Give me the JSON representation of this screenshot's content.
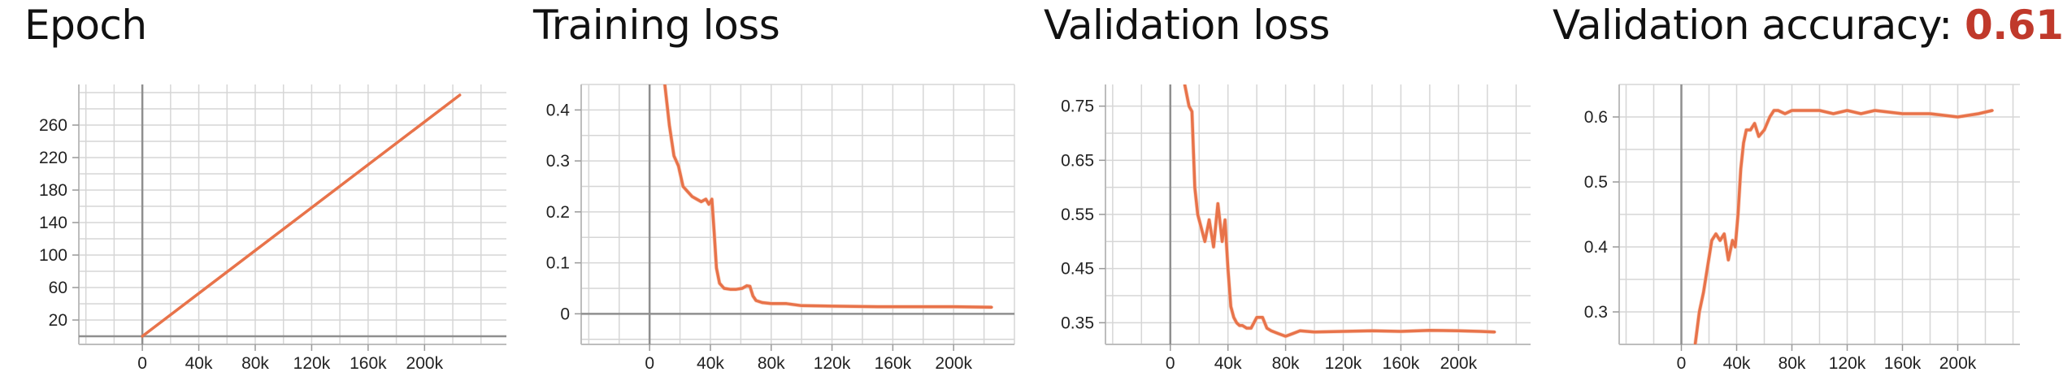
{
  "charts": [
    {
      "title": "Epoch",
      "chart_data": {
        "type": "line",
        "xlim": [
          -45000,
          258000
        ],
        "ylim": [
          -10,
          310
        ],
        "x_ticks": [
          0,
          40000,
          80000,
          120000,
          160000,
          200000
        ],
        "x_tick_labels": [
          "0",
          "40k",
          "80k",
          "120k",
          "160k",
          "200k"
        ],
        "y_ticks": [
          20,
          60,
          100,
          140,
          180,
          220,
          260
        ],
        "y_tick_labels": [
          "20",
          "60",
          "100",
          "140",
          "180",
          "220",
          "260"
        ],
        "grid": true,
        "series": [
          {
            "x": [
              0,
              225000
            ],
            "y": [
              0,
              297
            ],
            "smoothed": true
          }
        ]
      }
    },
    {
      "title": "Training loss",
      "chart_data": {
        "type": "line",
        "xlim": [
          -45000,
          240000
        ],
        "ylim": [
          -0.06,
          0.45
        ],
        "x_ticks": [
          0,
          40000,
          80000,
          120000,
          160000,
          200000
        ],
        "x_tick_labels": [
          "0",
          "40k",
          "80k",
          "120k",
          "160k",
          "200k"
        ],
        "y_ticks": [
          0,
          0.1,
          0.2,
          0.3,
          0.4
        ],
        "y_tick_labels": [
          "0",
          "0.1",
          "0.2",
          "0.3",
          "0.4"
        ],
        "grid": true,
        "series": [
          {
            "x": [
              10000,
              13000,
              16000,
              19000,
              22000,
              25000,
              28000,
              31000,
              34000,
              37000,
              39000,
              41000,
              42500,
              44000,
              46000,
              49000,
              53000,
              57000,
              61000,
              64000,
              66000,
              68000,
              70000,
              74000,
              80000,
              90000,
              100000,
              120000,
              150000,
              180000,
              200000,
              225000
            ],
            "y": [
              0.45,
              0.37,
              0.31,
              0.29,
              0.25,
              0.24,
              0.23,
              0.225,
              0.22,
              0.225,
              0.215,
              0.225,
              0.16,
              0.09,
              0.06,
              0.05,
              0.048,
              0.048,
              0.05,
              0.055,
              0.054,
              0.035,
              0.026,
              0.022,
              0.02,
              0.02,
              0.016,
              0.015,
              0.014,
              0.014,
              0.014,
              0.013
            ]
          }
        ]
      }
    },
    {
      "title": "Validation loss",
      "chart_data": {
        "type": "line",
        "xlim": [
          -45000,
          250000
        ],
        "ylim": [
          0.31,
          0.79
        ],
        "x_ticks": [
          0,
          40000,
          80000,
          120000,
          160000,
          200000
        ],
        "x_tick_labels": [
          "0",
          "40k",
          "80k",
          "120k",
          "160k",
          "200k"
        ],
        "y_ticks": [
          0.35,
          0.45,
          0.55,
          0.65,
          0.75
        ],
        "y_tick_labels": [
          "0.35",
          "0.45",
          "0.55",
          "0.65",
          "0.75"
        ],
        "grid": true,
        "series": [
          {
            "x": [
              10000,
              13000,
              15000,
              17000,
              19000,
              21000,
              24000,
              27000,
              30000,
              33000,
              36000,
              38000,
              40000,
              42000,
              44000,
              46000,
              48000,
              50000,
              53000,
              56000,
              60000,
              64000,
              67000,
              70000,
              75000,
              80000,
              85000,
              90000,
              100000,
              120000,
              140000,
              160000,
              180000,
              200000,
              215000,
              225000
            ],
            "y": [
              0.79,
              0.75,
              0.74,
              0.6,
              0.55,
              0.53,
              0.5,
              0.54,
              0.49,
              0.57,
              0.5,
              0.54,
              0.45,
              0.38,
              0.36,
              0.35,
              0.345,
              0.345,
              0.34,
              0.34,
              0.36,
              0.36,
              0.34,
              0.335,
              0.33,
              0.325,
              0.33,
              0.335,
              0.333,
              0.334,
              0.335,
              0.334,
              0.336,
              0.335,
              0.334,
              0.333
            ]
          }
        ]
      }
    },
    {
      "title": "Validation accuracy:",
      "title_value": "0.61",
      "chart_data": {
        "type": "line",
        "xlim": [
          -45000,
          245000
        ],
        "ylim": [
          0.25,
          0.65
        ],
        "x_ticks": [
          0,
          40000,
          80000,
          120000,
          160000,
          200000
        ],
        "x_tick_labels": [
          "0",
          "40k",
          "80k",
          "120k",
          "160k",
          "200k"
        ],
        "y_ticks": [
          0.3,
          0.4,
          0.5,
          0.6
        ],
        "y_tick_labels": [
          "0.3",
          "0.4",
          "0.5",
          "0.6"
        ],
        "grid": true,
        "series": [
          {
            "x": [
              10000,
              13000,
              16000,
              19000,
              22000,
              25000,
              28000,
              31000,
              34000,
              37000,
              39000,
              41000,
              43000,
              45000,
              47000,
              50000,
              53000,
              56000,
              60000,
              64000,
              67000,
              70000,
              75000,
              80000,
              90000,
              100000,
              110000,
              120000,
              130000,
              140000,
              160000,
              180000,
              200000,
              215000,
              225000
            ],
            "y": [
              0.25,
              0.3,
              0.33,
              0.37,
              0.41,
              0.42,
              0.41,
              0.42,
              0.38,
              0.41,
              0.4,
              0.45,
              0.52,
              0.56,
              0.58,
              0.58,
              0.59,
              0.57,
              0.58,
              0.6,
              0.61,
              0.61,
              0.605,
              0.61,
              0.61,
              0.61,
              0.605,
              0.61,
              0.605,
              0.61,
              0.605,
              0.605,
              0.6,
              0.605,
              0.61
            ]
          }
        ]
      }
    }
  ],
  "colors": {
    "line": "#e8734a",
    "raw": "#f6c7b4",
    "highlight": "#c0392b",
    "zero_axis": "#8f8f8f",
    "grid": "#d6d6d6"
  }
}
